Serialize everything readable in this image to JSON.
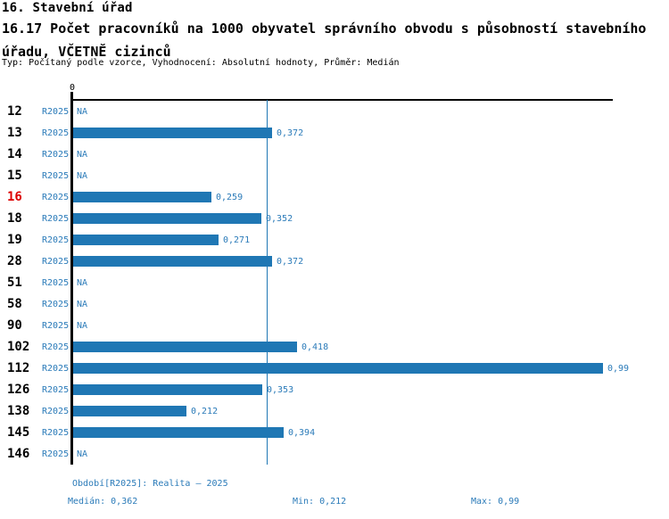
{
  "header": {
    "title": "16. Stavební úřad",
    "subtitle": "16.17 Počet pracovníků na 1000 obyvatel správního obvodu s působností stavebního úřadu, VČETNĚ cizinců",
    "meta": "Typ: Počítaný podle vzorce, Vyhodnocení: Absolutní hodnoty, Průměr: Medián"
  },
  "chart_data": {
    "type": "bar",
    "orientation": "horizontal",
    "title": "16.17 Počet pracovníků na 1000 obyvatel správního obvodu s působností stavebního úřadu, VČETNĚ cizinců",
    "xlabel": "",
    "ylabel": "",
    "xlim": [
      0,
      0.99
    ],
    "axis": {
      "zero_label": "0",
      "median_line_value": 0.362
    },
    "period_label": "R2025",
    "na_label": "NA",
    "rows": [
      {
        "id": "12",
        "value": null,
        "value_label": "NA",
        "highlight": false
      },
      {
        "id": "13",
        "value": 0.372,
        "value_label": "0,372",
        "highlight": false
      },
      {
        "id": "14",
        "value": null,
        "value_label": "NA",
        "highlight": false
      },
      {
        "id": "15",
        "value": null,
        "value_label": "NA",
        "highlight": false
      },
      {
        "id": "16",
        "value": 0.259,
        "value_label": "0,259",
        "highlight": true
      },
      {
        "id": "18",
        "value": 0.352,
        "value_label": "0,352",
        "highlight": false
      },
      {
        "id": "19",
        "value": 0.271,
        "value_label": "0,271",
        "highlight": false
      },
      {
        "id": "28",
        "value": 0.372,
        "value_label": "0,372",
        "highlight": false
      },
      {
        "id": "51",
        "value": null,
        "value_label": "NA",
        "highlight": false
      },
      {
        "id": "58",
        "value": null,
        "value_label": "NA",
        "highlight": false
      },
      {
        "id": "90",
        "value": null,
        "value_label": "NA",
        "highlight": false
      },
      {
        "id": "102",
        "value": 0.418,
        "value_label": "0,418",
        "highlight": false
      },
      {
        "id": "112",
        "value": 0.99,
        "value_label": "0,99",
        "highlight": false
      },
      {
        "id": "126",
        "value": 0.353,
        "value_label": "0,353",
        "highlight": false
      },
      {
        "id": "138",
        "value": 0.212,
        "value_label": "0,212",
        "highlight": false
      },
      {
        "id": "145",
        "value": 0.394,
        "value_label": "0,394",
        "highlight": false
      },
      {
        "id": "146",
        "value": null,
        "value_label": "NA",
        "highlight": false
      }
    ],
    "colors": {
      "bar": "#1f77b4",
      "text_blue": "#2b7bb9",
      "highlight_red": "#dd0000",
      "axis_black": "#000000"
    }
  },
  "footer": {
    "period": "Období[R2025]: Realita – 2025",
    "median": "Medián: 0,362",
    "min": "Min: 0,212",
    "max": "Max: 0,99"
  }
}
